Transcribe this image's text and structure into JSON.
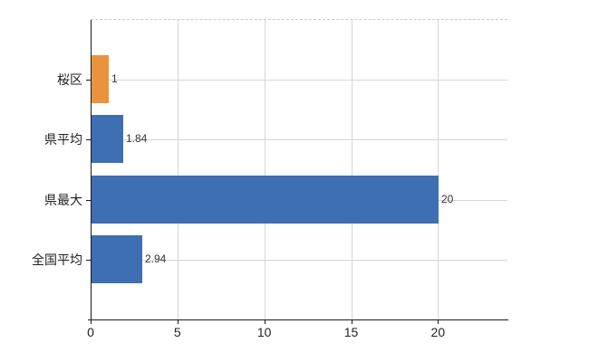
{
  "chart_data": {
    "type": "bar",
    "orientation": "horizontal",
    "title": "",
    "xlabel": "",
    "ylabel": "",
    "categories": [
      "桜区",
      "県平均",
      "県最大",
      "全国平均"
    ],
    "values": [
      1,
      1.84,
      20,
      2.94
    ],
    "value_labels": [
      "1",
      "1.84",
      "20",
      "2.94"
    ],
    "bar_colors": [
      "#e9943c",
      "#3d6fb2",
      "#3d6fb2",
      "#3d6fb2"
    ],
    "x_ticks": [
      0,
      5,
      10,
      15,
      20
    ],
    "x_tick_labels": [
      "0",
      "5",
      "10",
      "15",
      "20"
    ],
    "xlim": [
      0,
      24
    ],
    "grid": "horizontal and vertical light-gray gridlines, dashed top border, no right border",
    "legend": false
  },
  "colors": {
    "bar_blue": "#3d6fb2",
    "bar_orange": "#e9943c",
    "gridline": "#d6d6d6",
    "top_border": "#cccccc",
    "axis": "#1a1a1a",
    "category_text": "#222222",
    "value_text": "#333333",
    "tick_text": "#222222",
    "background": "#ffffff"
  }
}
